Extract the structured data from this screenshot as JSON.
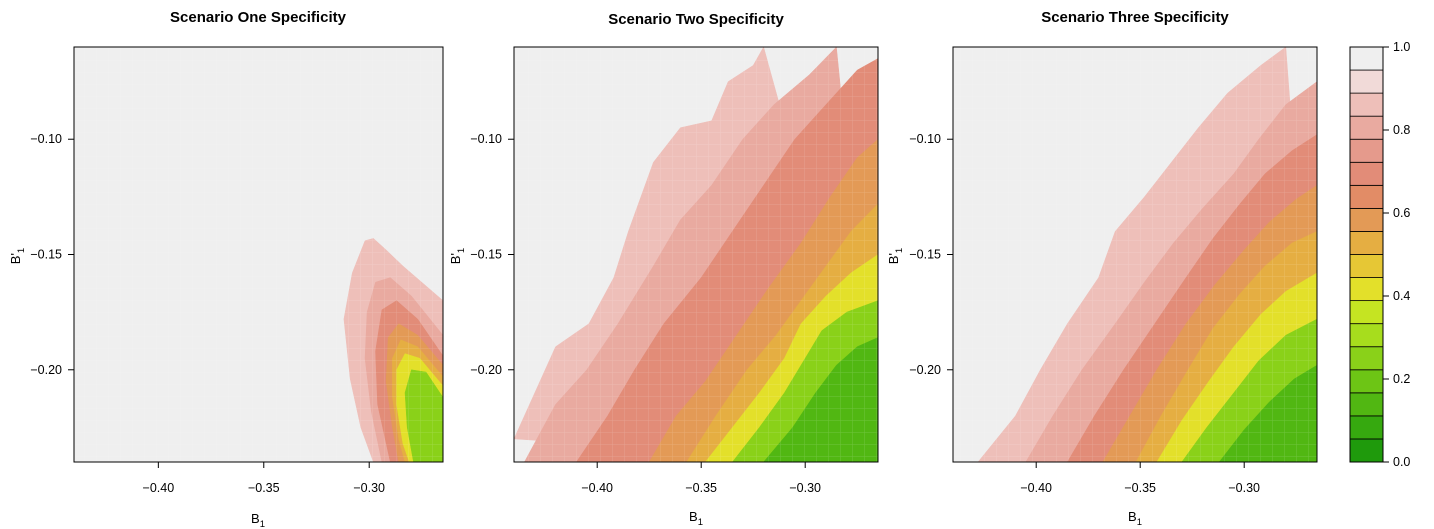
{
  "chart_data": [
    {
      "type": "heatmap",
      "title": "Scenario One Specificity",
      "xlabel": "B",
      "xlabel_sub": "1",
      "ylabel": "B'",
      "ylabel_sub": "1",
      "xlim": [
        -0.44,
        -0.265
      ],
      "ylim": [
        -0.24,
        -0.06
      ],
      "xticks": [
        -0.4,
        -0.35,
        -0.3
      ],
      "xtick_labels": [
        "−0.40",
        "−0.35",
        "−0.30"
      ],
      "yticks": [
        -0.1,
        -0.15,
        -0.2
      ],
      "ytick_labels": [
        "−0.10",
        "−0.15",
        "−0.20"
      ],
      "value_range": [
        0.0,
        1.0
      ],
      "contours": [
        {
          "level": 0.9,
          "points": [
            [
              -0.265,
              -0.17
            ],
            [
              -0.284,
              -0.155
            ],
            [
              -0.292,
              -0.148
            ],
            [
              -0.298,
              -0.143
            ],
            [
              -0.302,
              -0.144
            ],
            [
              -0.308,
              -0.158
            ],
            [
              -0.312,
              -0.178
            ],
            [
              -0.309,
              -0.204
            ],
            [
              -0.304,
              -0.225
            ],
            [
              -0.298,
              -0.24
            ]
          ]
        },
        {
          "level": 0.8,
          "points": [
            [
              -0.265,
              -0.185
            ],
            [
              -0.28,
              -0.168
            ],
            [
              -0.29,
              -0.16
            ],
            [
              -0.297,
              -0.162
            ],
            [
              -0.301,
              -0.175
            ],
            [
              -0.302,
              -0.195
            ],
            [
              -0.299,
              -0.218
            ],
            [
              -0.294,
              -0.24
            ]
          ]
        },
        {
          "level": 0.7,
          "points": [
            [
              -0.265,
              -0.194
            ],
            [
              -0.277,
              -0.178
            ],
            [
              -0.287,
              -0.17
            ],
            [
              -0.294,
              -0.174
            ],
            [
              -0.297,
              -0.192
            ],
            [
              -0.296,
              -0.215
            ],
            [
              -0.29,
              -0.24
            ]
          ]
        },
        {
          "level": 0.6,
          "points": [
            [
              -0.265,
              -0.198
            ],
            [
              -0.277,
              -0.185
            ],
            [
              -0.286,
              -0.18
            ],
            [
              -0.291,
              -0.186
            ],
            [
              -0.292,
              -0.205
            ],
            [
              -0.289,
              -0.225
            ],
            [
              -0.286,
              -0.24
            ]
          ]
        },
        {
          "level": 0.5,
          "points": [
            [
              -0.265,
              -0.203
            ],
            [
              -0.277,
              -0.19
            ],
            [
              -0.285,
              -0.187
            ],
            [
              -0.289,
              -0.195
            ],
            [
              -0.289,
              -0.212
            ],
            [
              -0.286,
              -0.23
            ],
            [
              -0.283,
              -0.24
            ]
          ]
        },
        {
          "level": 0.4,
          "points": [
            [
              -0.265,
              -0.207
            ],
            [
              -0.276,
              -0.195
            ],
            [
              -0.283,
              -0.193
            ],
            [
              -0.287,
              -0.2
            ],
            [
              -0.287,
              -0.215
            ],
            [
              -0.284,
              -0.232
            ],
            [
              -0.281,
              -0.24
            ]
          ]
        },
        {
          "level": 0.25,
          "points": [
            [
              -0.265,
              -0.212
            ],
            [
              -0.273,
              -0.201
            ],
            [
              -0.28,
              -0.2
            ],
            [
              -0.283,
              -0.21
            ],
            [
              -0.282,
              -0.225
            ],
            [
              -0.279,
              -0.24
            ]
          ]
        }
      ]
    },
    {
      "type": "heatmap",
      "title": "Scenario Two Specificity",
      "xlabel": "B",
      "xlabel_sub": "1",
      "ylabel": "B'",
      "ylabel_sub": "1",
      "xlim": [
        -0.44,
        -0.265
      ],
      "ylim": [
        -0.24,
        -0.06
      ],
      "xticks": [
        -0.4,
        -0.35,
        -0.3
      ],
      "xtick_labels": [
        "−0.40",
        "−0.35",
        "−0.30"
      ],
      "yticks": [
        -0.1,
        -0.15,
        -0.2
      ],
      "ytick_labels": [
        "−0.10",
        "−0.15",
        "−0.20"
      ],
      "value_range": [
        0.0,
        1.0
      ],
      "contours": [
        {
          "level": 0.9,
          "points": [
            [
              -0.44,
              -0.23
            ],
            [
              -0.42,
              -0.19
            ],
            [
              -0.404,
              -0.18
            ],
            [
              -0.392,
              -0.16
            ],
            [
              -0.385,
              -0.14
            ],
            [
              -0.373,
              -0.11
            ],
            [
              -0.36,
              -0.095
            ],
            [
              -0.345,
              -0.092
            ],
            [
              -0.337,
              -0.075
            ],
            [
              -0.325,
              -0.068
            ],
            [
              -0.32,
              -0.06
            ]
          ]
        },
        {
          "level": 0.8,
          "points": [
            [
              -0.435,
              -0.24
            ],
            [
              -0.42,
              -0.215
            ],
            [
              -0.405,
              -0.2
            ],
            [
              -0.39,
              -0.18
            ],
            [
              -0.373,
              -0.155
            ],
            [
              -0.36,
              -0.135
            ],
            [
              -0.345,
              -0.12
            ],
            [
              -0.33,
              -0.1
            ],
            [
              -0.315,
              -0.085
            ],
            [
              -0.298,
              -0.072
            ],
            [
              -0.285,
              -0.06
            ]
          ]
        },
        {
          "level": 0.7,
          "points": [
            [
              -0.41,
              -0.24
            ],
            [
              -0.395,
              -0.22
            ],
            [
              -0.382,
              -0.2
            ],
            [
              -0.368,
              -0.18
            ],
            [
              -0.35,
              -0.16
            ],
            [
              -0.335,
              -0.14
            ],
            [
              -0.32,
              -0.12
            ],
            [
              -0.305,
              -0.1
            ],
            [
              -0.29,
              -0.085
            ],
            [
              -0.275,
              -0.07
            ],
            [
              -0.265,
              -0.065
            ]
          ]
        },
        {
          "level": 0.6,
          "points": [
            [
              -0.375,
              -0.24
            ],
            [
              -0.362,
              -0.22
            ],
            [
              -0.348,
              -0.205
            ],
            [
              -0.333,
              -0.185
            ],
            [
              -0.318,
              -0.165
            ],
            [
              -0.302,
              -0.145
            ],
            [
              -0.288,
              -0.125
            ],
            [
              -0.275,
              -0.108
            ],
            [
              -0.265,
              -0.1
            ]
          ]
        },
        {
          "level": 0.5,
          "points": [
            [
              -0.357,
              -0.24
            ],
            [
              -0.343,
              -0.22
            ],
            [
              -0.328,
              -0.2
            ],
            [
              -0.314,
              -0.185
            ],
            [
              -0.302,
              -0.17
            ],
            [
              -0.29,
              -0.155
            ],
            [
              -0.278,
              -0.14
            ],
            [
              -0.265,
              -0.128
            ]
          ]
        },
        {
          "level": 0.4,
          "points": [
            [
              -0.348,
              -0.24
            ],
            [
              -0.335,
              -0.225
            ],
            [
              -0.322,
              -0.21
            ],
            [
              -0.31,
              -0.195
            ],
            [
              -0.302,
              -0.18
            ],
            [
              -0.29,
              -0.168
            ],
            [
              -0.278,
              -0.158
            ],
            [
              -0.265,
              -0.15
            ]
          ]
        },
        {
          "level": 0.25,
          "points": [
            [
              -0.335,
              -0.24
            ],
            [
              -0.322,
              -0.225
            ],
            [
              -0.31,
              -0.21
            ],
            [
              -0.3,
              -0.195
            ],
            [
              -0.292,
              -0.183
            ],
            [
              -0.28,
              -0.175
            ],
            [
              -0.265,
              -0.17
            ]
          ]
        },
        {
          "level": 0.1,
          "points": [
            [
              -0.32,
              -0.24
            ],
            [
              -0.306,
              -0.225
            ],
            [
              -0.295,
              -0.21
            ],
            [
              -0.285,
              -0.198
            ],
            [
              -0.275,
              -0.19
            ],
            [
              -0.265,
              -0.186
            ]
          ]
        }
      ]
    },
    {
      "type": "heatmap",
      "title": "Scenario Three Specificity",
      "xlabel": "B",
      "xlabel_sub": "1",
      "ylabel": "B'",
      "ylabel_sub": "1",
      "xlim": [
        -0.44,
        -0.265
      ],
      "ylim": [
        -0.24,
        -0.06
      ],
      "xticks": [
        -0.4,
        -0.35,
        -0.3
      ],
      "xtick_labels": [
        "−0.40",
        "−0.35",
        "−0.30"
      ],
      "yticks": [
        -0.1,
        -0.15,
        -0.2
      ],
      "ytick_labels": [
        "−0.10",
        "−0.15",
        "−0.20"
      ],
      "value_range": [
        0.0,
        1.0
      ],
      "contours": [
        {
          "level": 0.9,
          "points": [
            [
              -0.428,
              -0.24
            ],
            [
              -0.41,
              -0.22
            ],
            [
              -0.398,
              -0.2
            ],
            [
              -0.385,
              -0.18
            ],
            [
              -0.37,
              -0.16
            ],
            [
              -0.362,
              -0.14
            ],
            [
              -0.348,
              -0.125
            ],
            [
              -0.335,
              -0.11
            ],
            [
              -0.322,
              -0.095
            ],
            [
              -0.308,
              -0.08
            ],
            [
              -0.292,
              -0.068
            ],
            [
              -0.28,
              -0.06
            ]
          ]
        },
        {
          "level": 0.8,
          "points": [
            [
              -0.405,
              -0.24
            ],
            [
              -0.392,
              -0.22
            ],
            [
              -0.378,
              -0.2
            ],
            [
              -0.362,
              -0.18
            ],
            [
              -0.348,
              -0.162
            ],
            [
              -0.334,
              -0.145
            ],
            [
              -0.32,
              -0.13
            ],
            [
              -0.305,
              -0.115
            ],
            [
              -0.293,
              -0.1
            ],
            [
              -0.28,
              -0.085
            ],
            [
              -0.265,
              -0.075
            ]
          ]
        },
        {
          "level": 0.7,
          "points": [
            [
              -0.385,
              -0.24
            ],
            [
              -0.372,
              -0.22
            ],
            [
              -0.358,
              -0.2
            ],
            [
              -0.343,
              -0.18
            ],
            [
              -0.328,
              -0.16
            ],
            [
              -0.315,
              -0.143
            ],
            [
              -0.302,
              -0.128
            ],
            [
              -0.29,
              -0.115
            ],
            [
              -0.277,
              -0.105
            ],
            [
              -0.265,
              -0.098
            ]
          ]
        },
        {
          "level": 0.6,
          "points": [
            [
              -0.368,
              -0.24
            ],
            [
              -0.355,
              -0.22
            ],
            [
              -0.342,
              -0.2
            ],
            [
              -0.328,
              -0.18
            ],
            [
              -0.314,
              -0.163
            ],
            [
              -0.3,
              -0.148
            ],
            [
              -0.288,
              -0.136
            ],
            [
              -0.275,
              -0.126
            ],
            [
              -0.265,
              -0.12
            ]
          ]
        },
        {
          "level": 0.5,
          "points": [
            [
              -0.352,
              -0.24
            ],
            [
              -0.34,
              -0.22
            ],
            [
              -0.327,
              -0.2
            ],
            [
              -0.315,
              -0.182
            ],
            [
              -0.302,
              -0.167
            ],
            [
              -0.29,
              -0.155
            ],
            [
              -0.277,
              -0.145
            ],
            [
              -0.265,
              -0.14
            ]
          ]
        },
        {
          "level": 0.4,
          "points": [
            [
              -0.342,
              -0.24
            ],
            [
              -0.33,
              -0.222
            ],
            [
              -0.317,
              -0.205
            ],
            [
              -0.305,
              -0.19
            ],
            [
              -0.292,
              -0.176
            ],
            [
              -0.28,
              -0.166
            ],
            [
              -0.265,
              -0.158
            ]
          ]
        },
        {
          "level": 0.25,
          "points": [
            [
              -0.33,
              -0.24
            ],
            [
              -0.318,
              -0.225
            ],
            [
              -0.305,
              -0.21
            ],
            [
              -0.293,
              -0.196
            ],
            [
              -0.28,
              -0.185
            ],
            [
              -0.265,
              -0.178
            ]
          ]
        },
        {
          "level": 0.1,
          "points": [
            [
              -0.312,
              -0.24
            ],
            [
              -0.3,
              -0.226
            ],
            [
              -0.288,
              -0.214
            ],
            [
              -0.276,
              -0.204
            ],
            [
              -0.265,
              -0.198
            ]
          ]
        }
      ]
    }
  ],
  "colorbar": {
    "ticks": [
      0.0,
      0.2,
      0.4,
      0.6,
      0.8,
      1.0
    ],
    "tick_labels": [
      "0.0",
      "0.2",
      "0.4",
      "0.6",
      "0.8",
      "1.0"
    ],
    "levels": 17,
    "colors": [
      "#1f9a0c",
      "#36a90f",
      "#51b712",
      "#6dc515",
      "#8ad119",
      "#a7dd1d",
      "#c5e422",
      "#e3e02a",
      "#e6c735",
      "#e5ae42",
      "#e39a56",
      "#e28c66",
      "#e28c78",
      "#e59a8c",
      "#e9aaa0",
      "#eebfb9",
      "#f1dad8",
      "#efefef"
    ]
  }
}
